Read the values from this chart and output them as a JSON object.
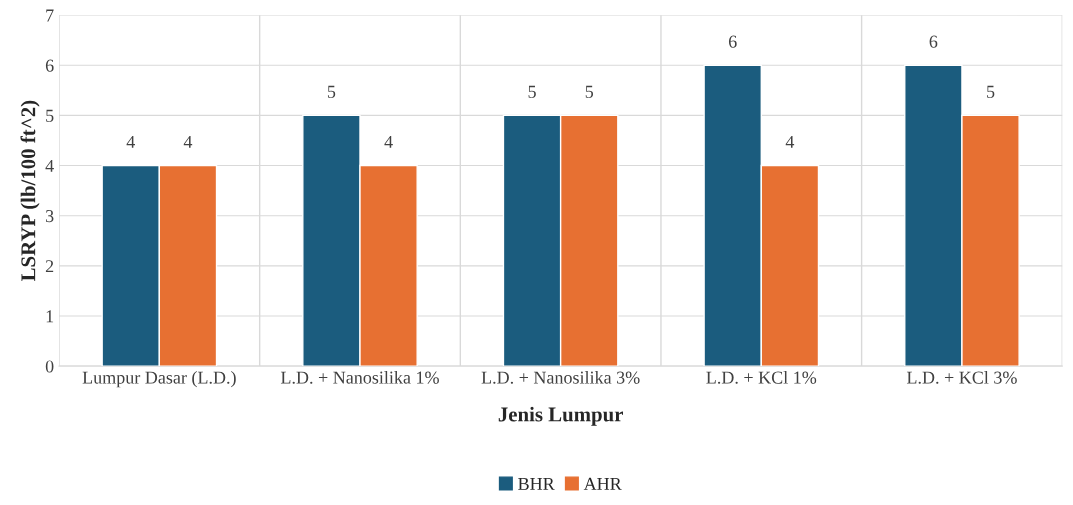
{
  "chart_data": {
    "type": "bar",
    "xlabel": "Jenis Lumpur",
    "ylabel": "LSRYP (lb/100 ft^2)",
    "categories": [
      "Lumpur Dasar (L.D.)",
      "L.D. + Nanosilika 1%",
      "L.D. + Nanosilika 3%",
      "L.D. + KCl 1%",
      "L.D. + KCl 3%"
    ],
    "series": [
      {
        "name": "BHR",
        "color": "#1b5c7e",
        "values": [
          4,
          5,
          5,
          6,
          6
        ]
      },
      {
        "name": "AHR",
        "color": "#e77032",
        "values": [
          4,
          4,
          5,
          4,
          5
        ]
      }
    ],
    "ylim": [
      0,
      7
    ],
    "yticks": [
      0,
      1,
      2,
      3,
      4,
      5,
      6,
      7
    ],
    "grid": true,
    "legend": "bottom",
    "data_labels": true
  }
}
